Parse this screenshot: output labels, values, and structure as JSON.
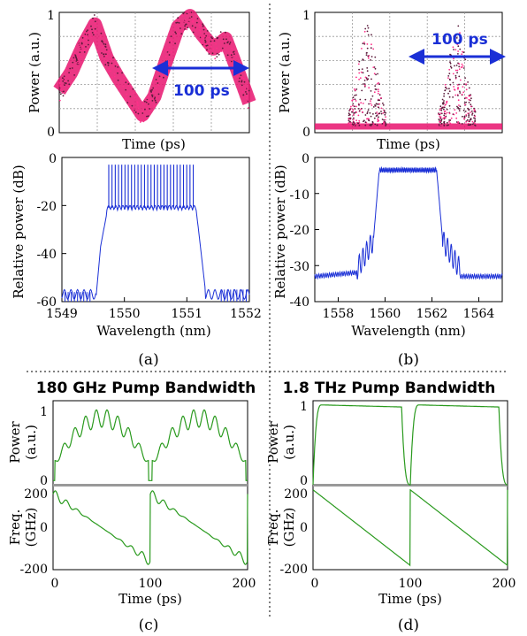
{
  "figure": {
    "labels": [
      "(a)",
      "(b)",
      "(c)",
      "(d)"
    ],
    "separator_color": "#000000"
  },
  "chart_data": [
    {
      "id": "a-top",
      "type": "scatter",
      "xlabel": "Time (ps)",
      "ylabel": "Power (a.u.)",
      "ylim": [
        0,
        1
      ],
      "yticks": [
        "0",
        "1"
      ],
      "grid": true,
      "annotation": "100 ps",
      "color": "#e8146e",
      "annotation_color": "#1a2fd6",
      "series": [
        {
          "values": [
            0.35,
            0.5,
            0.72,
            0.9,
            0.62,
            0.45,
            0.3,
            0.15,
            0.3,
            0.6,
            0.88,
            0.97,
            0.82,
            0.7,
            0.78,
            0.52,
            0.25
          ]
        }
      ]
    },
    {
      "id": "b-top",
      "type": "scatter",
      "xlabel": "Time (ps)",
      "ylabel": "Power (a.u.)",
      "ylim": [
        0,
        1
      ],
      "yticks": [
        "0",
        "1"
      ],
      "grid": true,
      "annotation": "100 ps",
      "color": "#e8146e",
      "annotation_color": "#1a2fd6",
      "pulse_peak": 0.9
    },
    {
      "id": "a-bottom",
      "type": "line",
      "xlabel": "Wavelength (nm)",
      "ylabel": "Relative power (dB)",
      "xlim": [
        1549,
        1552
      ],
      "ylim": [
        -60,
        0
      ],
      "xticks": [
        "1549",
        "1550",
        "1551",
        "1552"
      ],
      "yticks": [
        "0",
        "-20",
        "-40",
        "-60"
      ],
      "color": "#1a2fd6",
      "comb_lines_top_db": -3,
      "comb_lines_bottom_db": -21
    },
    {
      "id": "b-bottom",
      "type": "line",
      "xlabel": "Wavelength (nm)",
      "ylabel": "Relative power (dB)",
      "xlim": [
        1557,
        1565
      ],
      "ylim": [
        -40,
        0
      ],
      "xticks": [
        "1558",
        "1560",
        "1562",
        "1564"
      ],
      "yticks": [
        "0",
        "-10",
        "-20",
        "-30",
        "-40"
      ],
      "color": "#1a2fd6",
      "plateau_db": -3.5,
      "floor_db": -33
    },
    {
      "id": "c",
      "type": "line",
      "title": "180 GHz Pump Bandwidth",
      "xlabel": "Time (ps)",
      "xlim": [
        0,
        200
      ],
      "xticks": [
        "0",
        "100",
        "200"
      ],
      "color": "#2a9a1e",
      "power": {
        "ylabel": "Power (a.u.)",
        "ylabel_lines": [
          "Power",
          "(a.u.)"
        ],
        "ylim": [
          0,
          1
        ],
        "yticks": [
          "1",
          "0"
        ],
        "peak": 0.9
      },
      "freq": {
        "ylabel": "Freq. (GHz)",
        "ylabel_lines": [
          "Freq.",
          "(GHz)"
        ],
        "ylim": [
          -200,
          200
        ],
        "yticks": [
          "200",
          "0",
          "-200"
        ]
      }
    },
    {
      "id": "d",
      "type": "line",
      "title": "1.8 THz Pump Bandwidth",
      "xlabel": "Time (ps)",
      "xlim": [
        0,
        200
      ],
      "xticks": [
        "0",
        "100",
        "200"
      ],
      "color": "#2a9a1e",
      "power": {
        "ylabel": "Power (a.u.)",
        "ylabel_lines": [
          "Power",
          "(a.u.)"
        ],
        "ylim": [
          0,
          1
        ],
        "yticks": [
          "1",
          "0"
        ],
        "peak": 0.95
      },
      "freq": {
        "ylabel": "Freq. (GHz)",
        "ylabel_lines": [
          "Freq.",
          "(GHz)"
        ],
        "ylim": [
          -200,
          200
        ],
        "yticks": [
          "200",
          "0",
          "-200"
        ]
      }
    }
  ]
}
